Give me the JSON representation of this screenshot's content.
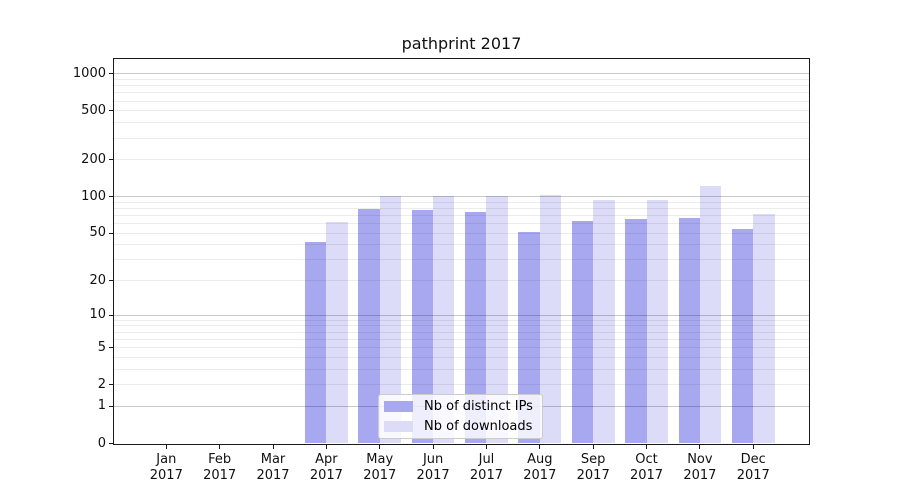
{
  "chart_data": {
    "type": "bar",
    "title": "pathprint 2017",
    "y_scale": "log1p (log-like axis with 1-2-5 tick steps, linear at 0)",
    "year": "2017",
    "categories": [
      "Jan",
      "Feb",
      "Mar",
      "Apr",
      "May",
      "Jun",
      "Jul",
      "Aug",
      "Sep",
      "Oct",
      "Nov",
      "Dec"
    ],
    "series": [
      {
        "name": "Nb of distinct IPs",
        "color": "#a8a8f0",
        "values": [
          0,
          0,
          0,
          42,
          79,
          78,
          75,
          51,
          63,
          66,
          67,
          54
        ]
      },
      {
        "name": "Nb of downloads",
        "color": "#dcdcf8",
        "values": [
          0,
          0,
          0,
          62,
          102,
          102,
          102,
          103,
          93,
          94,
          123,
          72
        ]
      }
    ],
    "y_ticks": [
      0,
      1,
      2,
      5,
      10,
      20,
      50,
      100,
      200,
      500,
      1000
    ],
    "ylim": [
      0,
      1300
    ],
    "xlabel": "",
    "ylabel": "",
    "grid": "horizontal, minor lines at 2-9 per decade, major lines at powers of 10, drawn over bars",
    "legend_position": "lower center"
  },
  "colors": {
    "bar_distinct_ips": "#a8a8f0",
    "bar_downloads": "#dcdcf8",
    "grid_major": "rgba(0,0,0,0.21)",
    "grid_minor": "rgba(0,0,0,0.075)",
    "axis_spine": "#1a1a1a",
    "tick_text": "#111111",
    "legend_border": "#cccccc",
    "legend_background": "rgba(255,255,255,0.8)"
  }
}
